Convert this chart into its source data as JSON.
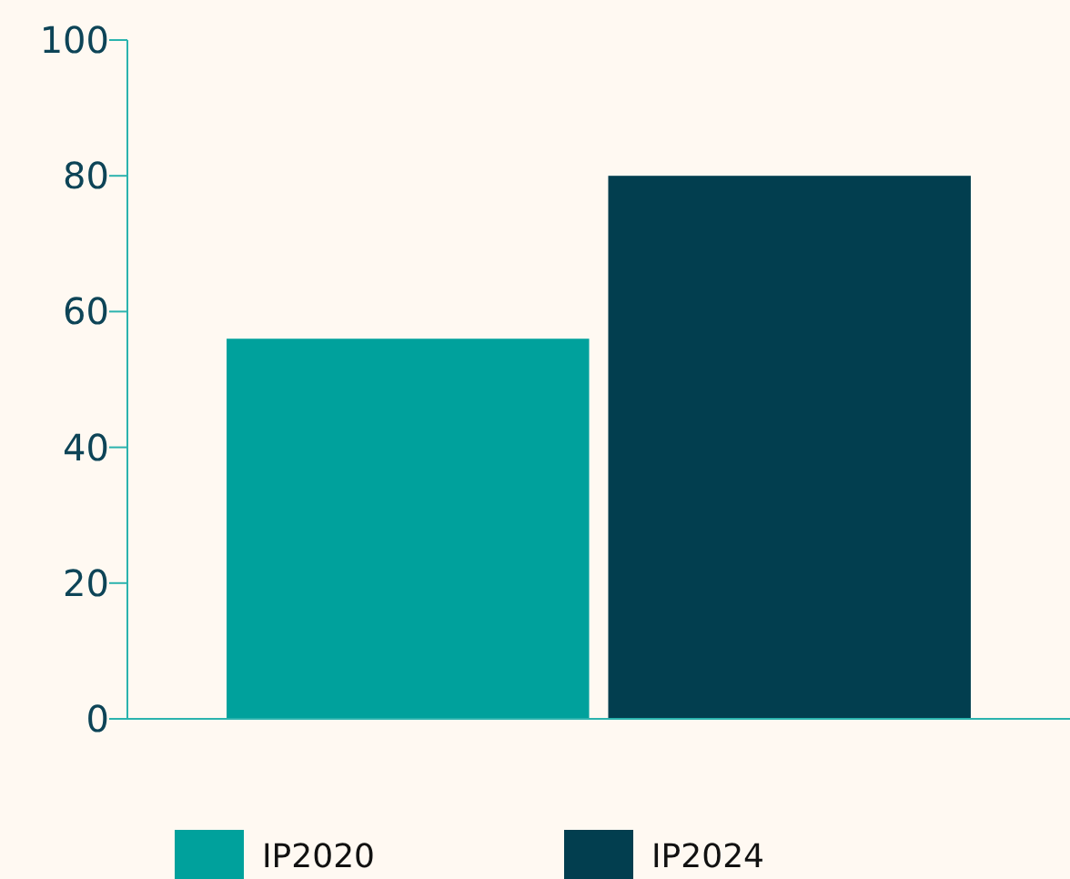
{
  "chart_data": {
    "type": "bar",
    "categories": [
      null
    ],
    "series": [
      {
        "name": "IP2020",
        "color": "#00a19c",
        "values": [
          56
        ]
      },
      {
        "name": "IP2024",
        "color": "#023e4f",
        "values": [
          80
        ]
      }
    ],
    "ylim": [
      0,
      100
    ],
    "yticks": [
      0,
      20,
      40,
      60,
      80,
      100
    ],
    "grid": false,
    "legend": "bottom left"
  }
}
